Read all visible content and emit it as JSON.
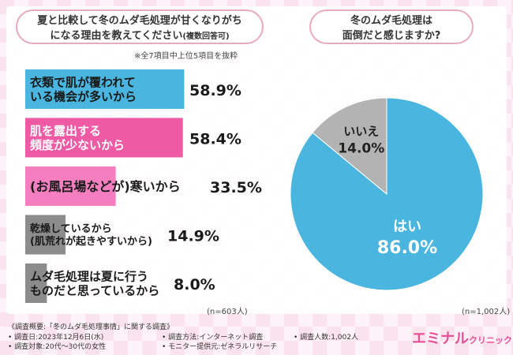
{
  "colors": {
    "accent": "#e64f97",
    "blue": "#4ab5df",
    "pink_bar": "#ef5aa5",
    "pink_light": "#f47ec0",
    "gray": "#8c8c8c",
    "pie_blue": "#4ab5df",
    "pie_gray": "#b3b3b3"
  },
  "left_question": {
    "line1": "夏と比較して冬のムダ毛処理が甘くなりがち",
    "line2": "になる理由を教えてください",
    "line2_sub": "(複数回答可)"
  },
  "left_note": "※全7項目中上位5項目を抜粋",
  "left_n": "(n=603人)",
  "right_question": {
    "line1": "冬のムダ毛処理は",
    "line2": "面倒だと感じますか?"
  },
  "right_n": "(n=1,002人)",
  "footer": {
    "title": "《調査概要:「冬のムダ毛処理事情」に関する調査》",
    "date": "• 調査日:2023年12月6日(水)",
    "target": "• 調査対象:20代〜30代の女性",
    "method": "• 調査方法:インターネット調査",
    "provider": "• モニター提供元:ゼネラルリサーチ",
    "count": "• 調査人数:1,002人"
  },
  "logo": {
    "main": "エミナル",
    "sub": "クリニック"
  },
  "chart_data": [
    {
      "type": "bar",
      "orientation": "horizontal",
      "categories": [
        [
          "衣類で肌が覆われて",
          "いる機会が多いから"
        ],
        [
          "肌を露出する",
          "頻度が少ないから"
        ],
        [
          "(お風呂場などが)寒いから"
        ],
        [
          "乾燥しているから",
          "(肌荒れが起きやすいから)"
        ],
        [
          "ムダ毛処理は夏に行う",
          "ものだと思っているから"
        ]
      ],
      "values": [
        58.9,
        58.4,
        33.5,
        14.9,
        8.0
      ],
      "labels": [
        "58.9%",
        "58.4%",
        "33.5%",
        "14.9%",
        "8.0%"
      ],
      "bar_colors": [
        "#4ab5df",
        "#ef5aa5",
        "#f47ec0",
        "#8c8c8c",
        "#8c8c8c"
      ],
      "xlim": [
        0,
        100
      ]
    },
    {
      "type": "pie",
      "categories": [
        "はい",
        "いいえ"
      ],
      "values": [
        86.0,
        14.0
      ],
      "labels": [
        "86.0%",
        "14.0%"
      ],
      "colors": [
        "#4ab5df",
        "#b3b3b3"
      ]
    }
  ]
}
